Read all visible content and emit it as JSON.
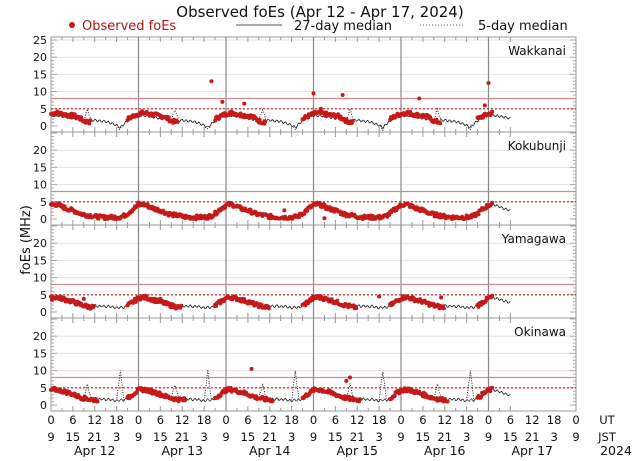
{
  "chart_data": {
    "type": "scatter",
    "title": "Observed foEs (Apr 12 - Apr 17, 2024)",
    "ylabel": "foEs (MHz)",
    "ylim": [
      0,
      25
    ],
    "yticks_top": [
      "0",
      "5",
      "10",
      "15",
      "20",
      "25"
    ],
    "yticks": [
      "0",
      "5",
      "10",
      "15",
      "20"
    ],
    "grid": true,
    "legend": {
      "placement": "top",
      "entries": [
        {
          "label": "Observed foEs",
          "style": "red-dot"
        },
        {
          "label": "27-day median",
          "style": "solid-line"
        },
        {
          "label": "5-day median",
          "style": "dotted-line"
        }
      ]
    },
    "x_hours_total": 126,
    "observed_end_hour": 121,
    "ut_ticks": [
      "0",
      "6",
      "12",
      "18",
      "0",
      "6",
      "12",
      "18",
      "0",
      "6",
      "12",
      "18",
      "0",
      "6",
      "12",
      "18",
      "0",
      "6",
      "12",
      "18",
      "0",
      "6",
      "12",
      "18",
      "0"
    ],
    "jst_ticks": [
      "9",
      "15",
      "21",
      "3",
      "9",
      "15",
      "21",
      "3",
      "9",
      "15",
      "21",
      "3",
      "9",
      "15",
      "21",
      "3",
      "9",
      "15",
      "21",
      "3",
      "9",
      "15",
      "21",
      "3",
      "9"
    ],
    "ut_label": "UT",
    "jst_label": "JST",
    "days": [
      "Apr 12",
      "Apr 13",
      "Apr 14",
      "Apr 15",
      "Apr 16",
      "Apr 17"
    ],
    "year": "2024",
    "reference_lines": {
      "solid": 8,
      "dotted": 5
    },
    "colors": {
      "observed": "#c41a1a",
      "ref_solid": "#d48a8a",
      "ref_dotted": "#c41a1a",
      "median": "#222222",
      "grid": "#e2e2e2"
    },
    "stations": [
      {
        "name": "Wakkanai",
        "observed_profile": [
          3.5,
          3.8,
          3.8,
          3.5,
          3.3,
          3.1,
          3.0,
          2.8,
          2.2,
          1.5,
          1.2,
          null,
          null,
          null,
          null,
          null,
          null,
          null,
          null,
          null,
          null,
          2.0,
          2.6,
          3.1
        ],
        "median27": [
          3.0,
          3.0,
          3.0,
          2.8,
          2.6,
          2.4,
          2.2,
          2.0,
          1.8,
          1.6,
          1.5,
          1.6,
          1.7,
          1.5,
          1.4,
          1.3,
          1.0,
          0.6,
          0.2,
          -0.4,
          0.6,
          1.5,
          2.2,
          2.8
        ],
        "median5": [
          3.1,
          3.1,
          3.0,
          2.9,
          2.7,
          2.5,
          2.3,
          2.1,
          1.9,
          1.6,
          4.8,
          1.6,
          1.7,
          1.5,
          1.4,
          1.3,
          1.0,
          0.6,
          0.2,
          -1.0,
          0.6,
          1.5,
          2.2,
          2.8
        ],
        "outliers": [
          [
            44,
            13
          ],
          [
            47,
            7
          ],
          [
            53,
            6.5
          ],
          [
            72,
            9.5
          ],
          [
            80,
            9
          ],
          [
            101,
            8
          ],
          [
            120,
            12.5
          ],
          [
            119,
            6
          ],
          [
            74,
            5
          ]
        ]
      },
      {
        "name": "Kokubunji",
        "observed_profile": [
          4.0,
          4.3,
          4.1,
          3.6,
          3.1,
          2.8,
          2.5,
          2.1,
          1.6,
          1.3,
          1.1,
          1.0,
          0.7,
          0.6,
          0.5,
          0.5,
          0.5,
          0.5,
          0.5,
          0.6,
          0.9,
          1.6,
          2.5,
          3.3
        ],
        "median27": [
          4.0,
          4.2,
          4.0,
          3.6,
          3.1,
          2.8,
          2.5,
          2.1,
          1.6,
          1.3,
          1.1,
          1.0,
          0.7,
          0.6,
          0.5,
          0.5,
          0.5,
          0.5,
          0.5,
          0.6,
          0.9,
          1.6,
          2.5,
          3.3
        ],
        "median5": [
          4.0,
          4.2,
          4.0,
          3.6,
          3.1,
          2.8,
          2.5,
          2.1,
          1.6,
          1.3,
          1.1,
          1.0,
          0.7,
          0.6,
          0.5,
          0.5,
          0.5,
          0.5,
          0.5,
          0.6,
          0.9,
          1.6,
          2.5,
          3.3
        ],
        "outliers": [
          [
            75,
            0.2
          ],
          [
            64,
            2.5
          ],
          [
            24,
            4.8
          ]
        ]
      },
      {
        "name": "Yamagawa",
        "observed_profile": [
          4.0,
          4.3,
          4.2,
          3.9,
          3.6,
          3.3,
          3.0,
          2.6,
          2.2,
          1.9,
          1.6,
          1.4,
          null,
          null,
          null,
          null,
          null,
          null,
          null,
          null,
          null,
          1.8,
          2.6,
          3.3
        ],
        "median27": [
          4.0,
          4.2,
          4.0,
          3.7,
          3.3,
          3.0,
          2.7,
          2.4,
          2.1,
          1.9,
          1.7,
          1.7,
          1.9,
          1.6,
          1.8,
          1.5,
          1.7,
          1.4,
          1.2,
          1.4,
          1.3,
          1.8,
          2.6,
          3.3
        ],
        "median5": [
          4.0,
          4.2,
          4.0,
          3.7,
          3.3,
          3.0,
          2.7,
          2.4,
          2.1,
          1.9,
          2.4,
          1.7,
          1.9,
          1.6,
          1.8,
          1.5,
          1.7,
          1.4,
          1.2,
          1.4,
          1.3,
          1.8,
          2.6,
          3.3
        ],
        "outliers": [
          [
            9,
            3.8
          ],
          [
            30,
            3.8
          ],
          [
            90,
            4.5
          ],
          [
            107,
            4.2
          ]
        ]
      },
      {
        "name": "Okinawa",
        "observed_profile": [
          4.3,
          4.5,
          4.4,
          4.1,
          3.8,
          3.5,
          3.1,
          2.7,
          2.3,
          2.0,
          1.8,
          1.6,
          1.5,
          null,
          null,
          null,
          null,
          null,
          null,
          null,
          null,
          1.9,
          2.8,
          3.6
        ],
        "median27": [
          4.2,
          4.4,
          4.2,
          3.9,
          3.5,
          3.1,
          2.8,
          2.5,
          2.2,
          2.0,
          2.2,
          1.8,
          1.9,
          1.6,
          1.8,
          1.5,
          1.7,
          1.4,
          1.2,
          1.5,
          1.4,
          1.9,
          2.8,
          3.6
        ],
        "median5": [
          4.2,
          4.4,
          4.2,
          3.9,
          3.5,
          3.1,
          2.8,
          2.5,
          2.2,
          2.0,
          6.0,
          1.8,
          1.9,
          1.6,
          1.8,
          1.5,
          1.7,
          1.4,
          1.2,
          10.0,
          1.4,
          1.9,
          2.8,
          3.6
        ],
        "outliers": [
          [
            55,
            10.5
          ],
          [
            82,
            8
          ],
          [
            81,
            7
          ],
          [
            98,
            4.8
          ]
        ]
      }
    ]
  }
}
